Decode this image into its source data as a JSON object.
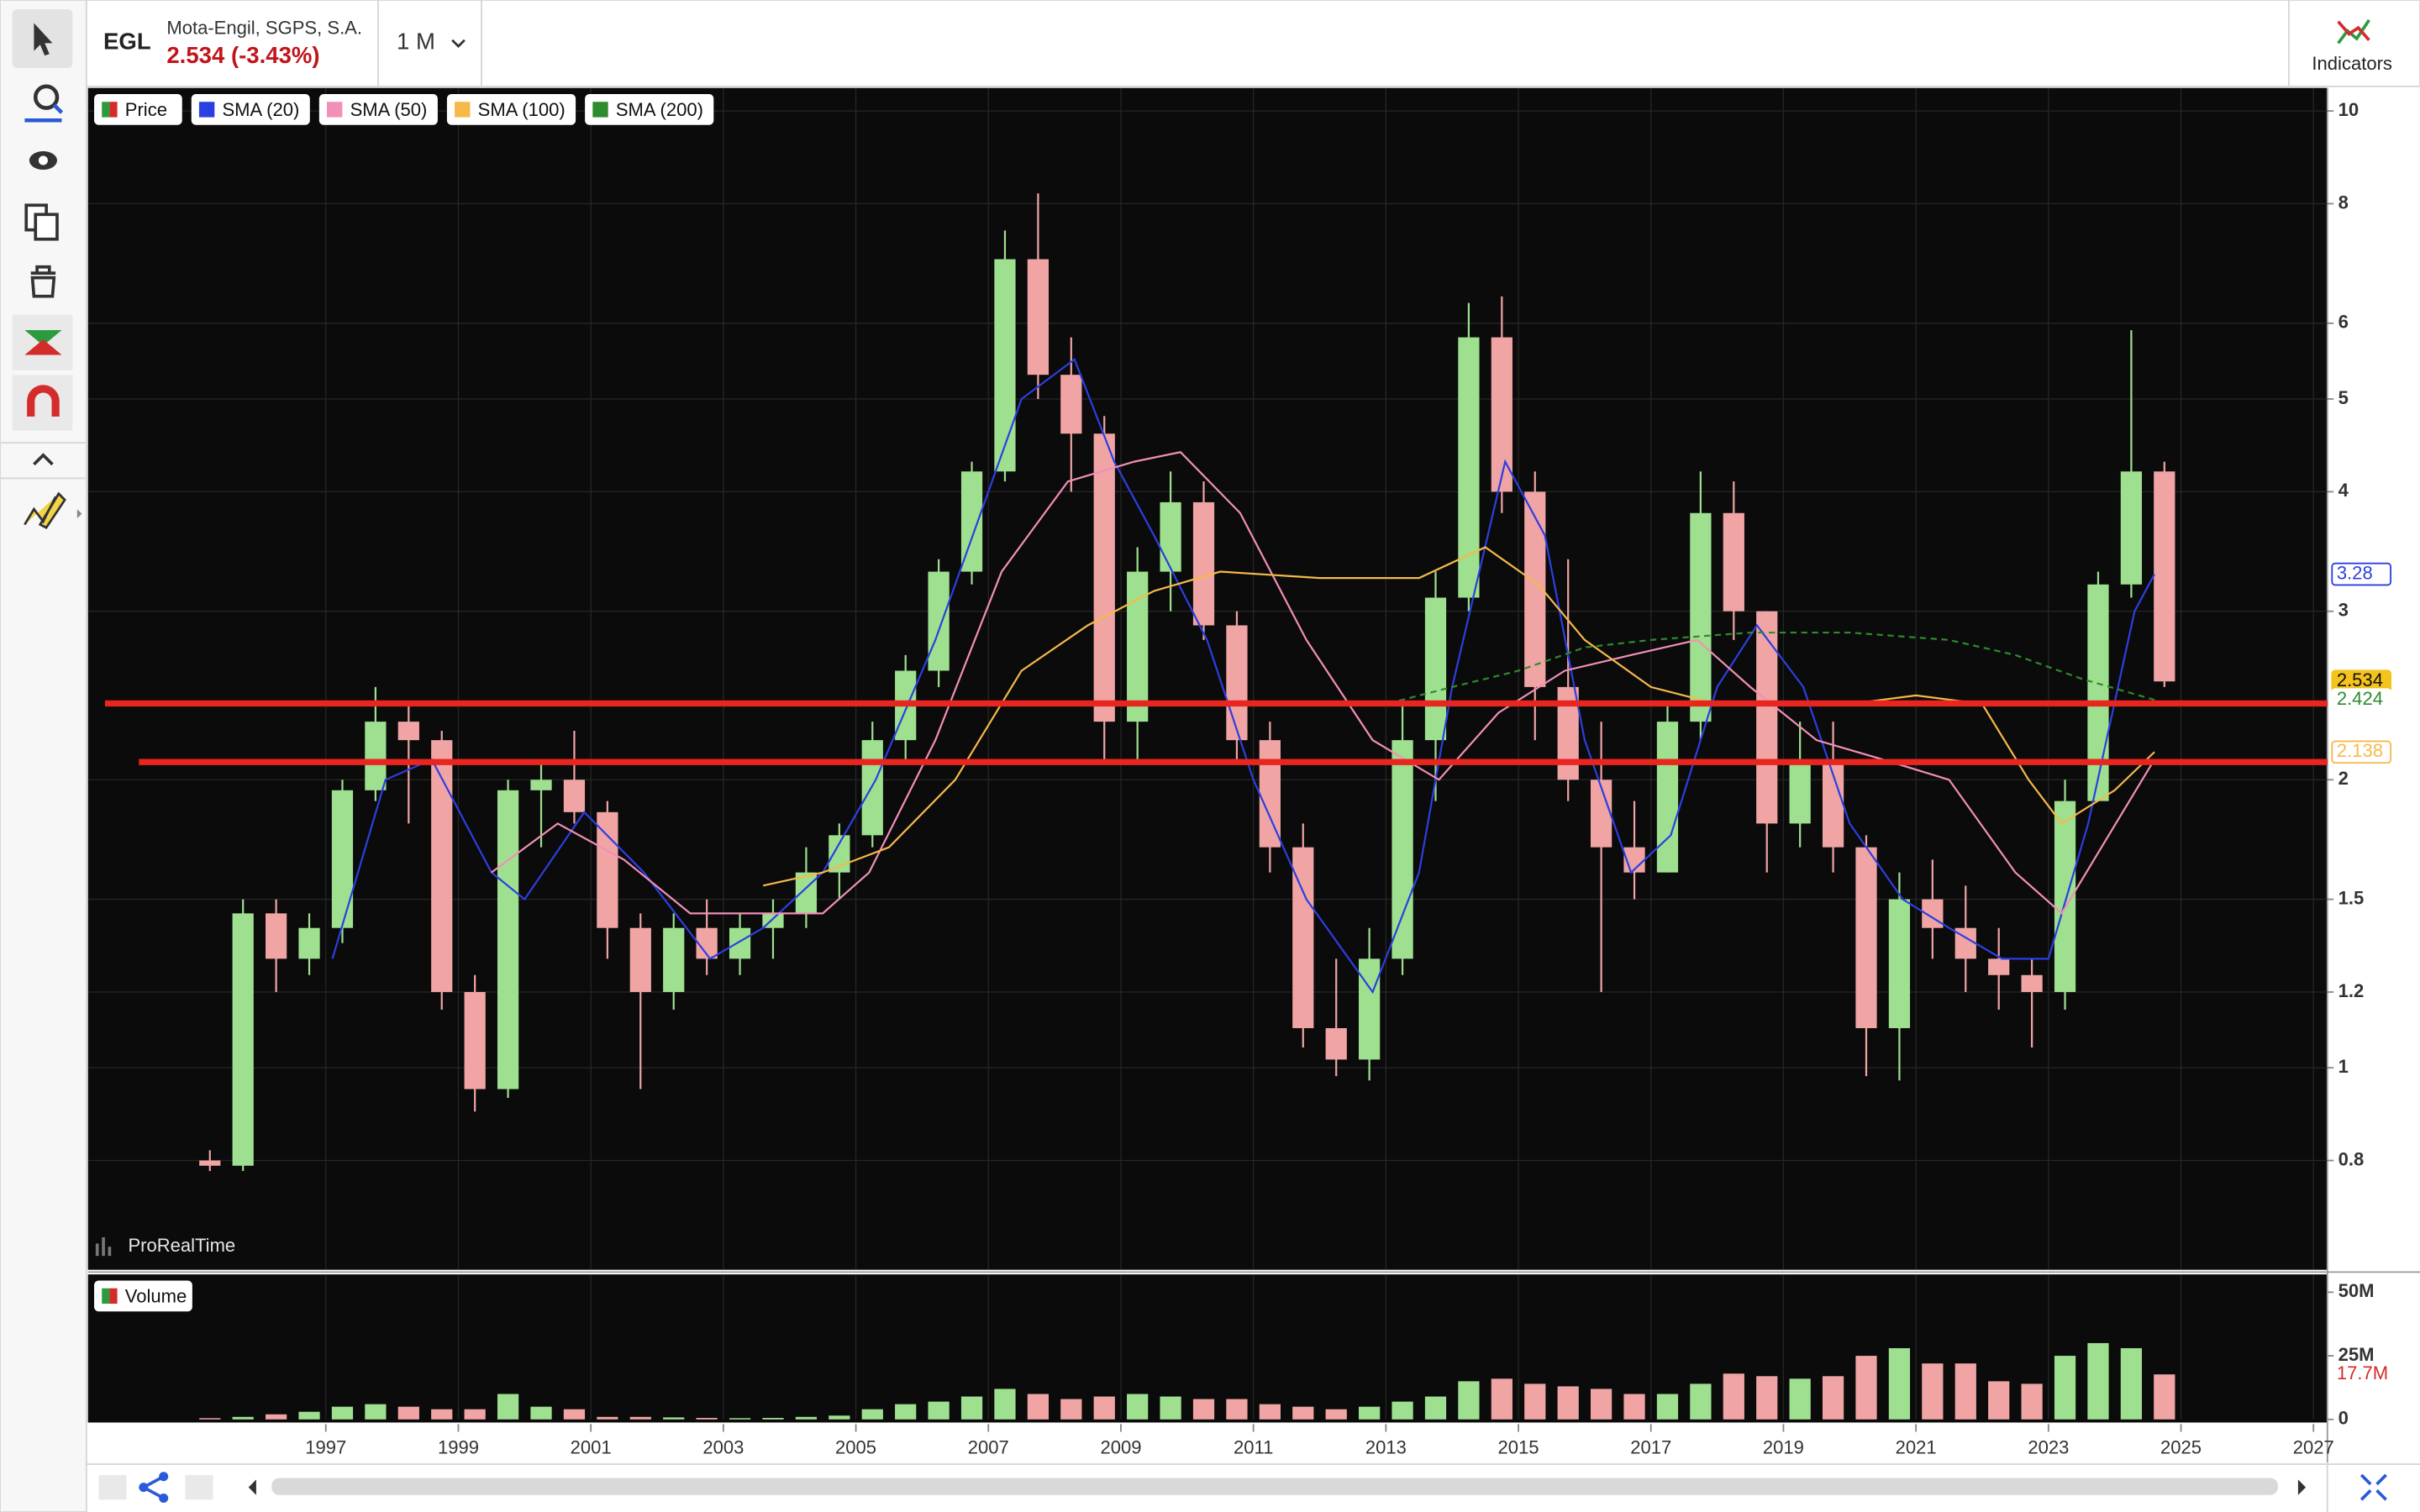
{
  "header": {
    "symbol": "EGL",
    "name": "Mota-Engil, SGPS, S.A.",
    "quote": "2.534 (-3.43%)",
    "period": "1 M",
    "indicators": "Indicators",
    "watermark": "ProRealTime"
  },
  "chart_data": [
    {
      "type": "candlestick",
      "name": "Price",
      "log_scale": true,
      "grid": true,
      "up_color": "#9ee08f",
      "down_color": "#f0a4a4",
      "x": [
        1995.25,
        1995.75,
        1996.25,
        1996.75,
        1997.25,
        1997.75,
        1998.25,
        1998.75,
        1999.25,
        1999.75,
        2000.25,
        2000.75,
        2001.25,
        2001.75,
        2002.25,
        2002.75,
        2003.25,
        2003.75,
        2004.25,
        2004.75,
        2005.25,
        2005.75,
        2006.25,
        2006.75,
        2007.25,
        2007.75,
        2008.25,
        2008.75,
        2009.25,
        2009.75,
        2010.25,
        2010.75,
        2011.25,
        2011.75,
        2012.25,
        2012.75,
        2013.25,
        2013.75,
        2014.25,
        2014.75,
        2015.25,
        2015.75,
        2016.25,
        2016.75,
        2017.25,
        2017.75,
        2018.25,
        2018.75,
        2019.25,
        2019.75,
        2020.25,
        2020.75,
        2021.25,
        2021.75,
        2022.25,
        2022.75,
        2023.25,
        2023.75,
        2024.25,
        2024.75
      ],
      "open": [
        0.8,
        0.79,
        1.45,
        1.3,
        1.4,
        1.95,
        2.3,
        2.2,
        1.2,
        0.95,
        1.95,
        2.0,
        1.85,
        1.4,
        1.2,
        1.4,
        1.3,
        1.4,
        1.45,
        1.6,
        1.75,
        2.2,
        2.6,
        3.3,
        4.2,
        7.0,
        5.3,
        4.6,
        2.3,
        3.3,
        3.9,
        2.9,
        2.2,
        1.7,
        1.1,
        1.02,
        1.3,
        2.2,
        3.1,
        5.8,
        4.0,
        2.5,
        2.0,
        1.7,
        1.6,
        2.3,
        3.8,
        3.0,
        1.8,
        2.1,
        1.7,
        1.1,
        1.5,
        1.4,
        1.3,
        1.25,
        1.2,
        1.9,
        3.2,
        4.2
      ],
      "high": [
        0.82,
        1.5,
        1.5,
        1.45,
        2.0,
        2.5,
        2.4,
        2.25,
        1.25,
        2.0,
        2.1,
        2.25,
        1.9,
        1.45,
        1.45,
        1.5,
        1.45,
        1.5,
        1.7,
        1.8,
        2.3,
        2.7,
        3.4,
        4.3,
        7.5,
        8.2,
        5.8,
        4.8,
        3.5,
        4.2,
        4.1,
        3.0,
        2.3,
        1.8,
        1.3,
        1.4,
        2.4,
        3.3,
        6.3,
        6.4,
        4.2,
        3.4,
        2.3,
        1.9,
        2.4,
        4.2,
        4.1,
        3.0,
        2.3,
        2.3,
        1.75,
        1.6,
        1.65,
        1.55,
        1.4,
        1.3,
        2.0,
        3.3,
        5.9,
        4.3
      ],
      "low": [
        0.78,
        0.78,
        1.2,
        1.25,
        1.35,
        1.9,
        1.8,
        1.15,
        0.9,
        0.93,
        1.7,
        1.8,
        1.3,
        0.95,
        1.15,
        1.25,
        1.25,
        1.3,
        1.4,
        1.5,
        1.7,
        2.1,
        2.5,
        3.2,
        4.1,
        5.0,
        4.0,
        2.1,
        2.1,
        3.0,
        2.8,
        2.1,
        1.6,
        1.05,
        0.98,
        0.97,
        1.25,
        1.9,
        3.0,
        3.8,
        2.2,
        1.9,
        1.2,
        1.5,
        1.6,
        2.2,
        2.8,
        1.6,
        1.7,
        1.6,
        0.98,
        0.97,
        1.3,
        1.2,
        1.15,
        1.05,
        1.15,
        1.9,
        3.1,
        2.5
      ],
      "close": [
        0.79,
        1.45,
        1.3,
        1.4,
        1.95,
        2.3,
        2.2,
        1.2,
        0.95,
        1.95,
        2.0,
        1.85,
        1.4,
        1.2,
        1.4,
        1.3,
        1.4,
        1.45,
        1.6,
        1.75,
        2.2,
        2.6,
        3.3,
        4.2,
        7.0,
        5.3,
        4.6,
        2.3,
        3.3,
        3.9,
        2.9,
        2.2,
        1.7,
        1.1,
        1.02,
        1.3,
        2.2,
        3.1,
        5.8,
        4.0,
        2.5,
        2.0,
        1.7,
        1.6,
        2.3,
        3.8,
        3.0,
        1.8,
        2.1,
        1.7,
        1.1,
        1.5,
        1.4,
        1.3,
        1.25,
        1.2,
        1.9,
        3.2,
        4.2,
        2.534
      ],
      "series": [
        {
          "name": "SMA (20)",
          "color": "#2b3fe0",
          "x": [
            1997.1,
            1997.9,
            1998.6,
            1999.5,
            2000.0,
            2000.9,
            2001.8,
            2002.8,
            2003.6,
            2004.5,
            2005.3,
            2006.2,
            2007.0,
            2007.5,
            2008.3,
            2008.9,
            2009.5,
            2010.3,
            2011.0,
            2011.8,
            2012.8,
            2013.5,
            2014.0,
            2014.8,
            2015.4,
            2016.0,
            2016.7,
            2017.3,
            2018.0,
            2018.6,
            2019.3,
            2020.0,
            2020.8,
            2021.5,
            2022.3,
            2023.0,
            2023.6,
            2024.3,
            2024.6
          ],
          "values": [
            1.3,
            2.0,
            2.1,
            1.6,
            1.5,
            1.85,
            1.6,
            1.3,
            1.4,
            1.6,
            2.0,
            2.8,
            4.0,
            5.0,
            5.5,
            4.3,
            3.6,
            2.8,
            2.0,
            1.5,
            1.2,
            1.6,
            2.5,
            4.3,
            3.6,
            2.2,
            1.6,
            1.75,
            2.5,
            2.9,
            2.5,
            1.8,
            1.5,
            1.4,
            1.3,
            1.3,
            1.8,
            3.0,
            3.28
          ]
        },
        {
          "name": "SMA (50)",
          "color": "#f28fb8",
          "x": [
            1999.5,
            2000.5,
            2001.5,
            2002.5,
            2003.5,
            2004.5,
            2005.2,
            2006.2,
            2007.2,
            2008.2,
            2009.2,
            2009.9,
            2010.8,
            2011.8,
            2012.8,
            2013.8,
            2014.7,
            2015.7,
            2016.7,
            2017.7,
            2018.5,
            2019.5,
            2020.5,
            2021.5,
            2022.5,
            2023.2,
            2023.8,
            2024.6
          ],
          "values": [
            1.6,
            1.8,
            1.65,
            1.45,
            1.45,
            1.45,
            1.6,
            2.2,
            3.3,
            4.1,
            4.3,
            4.4,
            3.8,
            2.8,
            2.2,
            2.0,
            2.35,
            2.6,
            2.7,
            2.8,
            2.5,
            2.2,
            2.1,
            2.0,
            1.6,
            1.45,
            1.7,
            2.1
          ]
        },
        {
          "name": "SMA (100)",
          "color": "#f5b94a",
          "x": [
            2003.6,
            2004.5,
            2005.5,
            2006.5,
            2007.5,
            2008.5,
            2009.5,
            2010.5,
            2012.0,
            2013.5,
            2014.5,
            2015.3,
            2016.0,
            2017.0,
            2018.0,
            2019.0,
            2020.0,
            2021.0,
            2022.0,
            2022.7,
            2023.2,
            2024.0,
            2024.6
          ],
          "values": [
            1.55,
            1.6,
            1.7,
            2.0,
            2.6,
            2.9,
            3.15,
            3.3,
            3.25,
            3.25,
            3.5,
            3.2,
            2.8,
            2.5,
            2.4,
            2.4,
            2.4,
            2.45,
            2.4,
            2.0,
            1.8,
            1.95,
            2.138
          ]
        },
        {
          "name": "SMA (200)",
          "color": "#2e8b2e",
          "dashed": true,
          "x": [
            2011.9,
            2013.0,
            2014.0,
            2015.0,
            2016.0,
            2017.0,
            2018.5,
            2020.0,
            2021.5,
            2022.5,
            2023.5,
            2024.6
          ],
          "values": [
            2.4,
            2.4,
            2.5,
            2.6,
            2.75,
            2.8,
            2.85,
            2.85,
            2.8,
            2.7,
            2.55,
            2.424
          ]
        }
      ],
      "hlines": [
        {
          "value": 2.403,
          "color": "#e8261f"
        },
        {
          "value": 2.087,
          "color": "#e8261f"
        }
      ],
      "xlim": [
        1993.41,
        2027.21
      ],
      "xticks": [
        1997,
        1999,
        2001,
        2003,
        2005,
        2007,
        2009,
        2011,
        2013,
        2015,
        2017,
        2019,
        2021,
        2023,
        2025,
        2027
      ],
      "ylim": [
        0.615,
        10.57
      ],
      "yticks": [
        0.8,
        1,
        1.2,
        1.5,
        2,
        3,
        4,
        5,
        6,
        8,
        10
      ]
    },
    {
      "type": "bar",
      "name": "Volume",
      "values": [
        500000,
        1000000,
        2000000,
        3000000,
        5000000,
        6000000,
        5000000,
        4000000,
        4000000,
        10000000,
        5000000,
        4000000,
        1000000,
        1000000,
        800000,
        600000,
        500000,
        600000,
        1000000,
        1500000,
        4000000,
        6000000,
        7000000,
        9000000,
        12000000,
        10000000,
        8000000,
        9000000,
        10000000,
        9000000,
        8000000,
        8000000,
        6000000,
        5000000,
        4000000,
        5000000,
        7000000,
        9000000,
        15000000,
        16000000,
        14000000,
        13000000,
        12000000,
        10000000,
        10000000,
        14000000,
        18000000,
        17000000,
        16000000,
        17000000,
        25000000,
        28000000,
        22000000,
        22000000,
        15000000,
        14000000,
        25000000,
        30000000,
        28000000,
        17700000
      ],
      "last_label": "17.7M",
      "ylim": [
        0,
        57000000
      ],
      "yticks": [
        0,
        {
          "value": 25000000,
          "label": "25M"
        },
        {
          "value": 50000000,
          "label": "50M"
        }
      ]
    }
  ]
}
